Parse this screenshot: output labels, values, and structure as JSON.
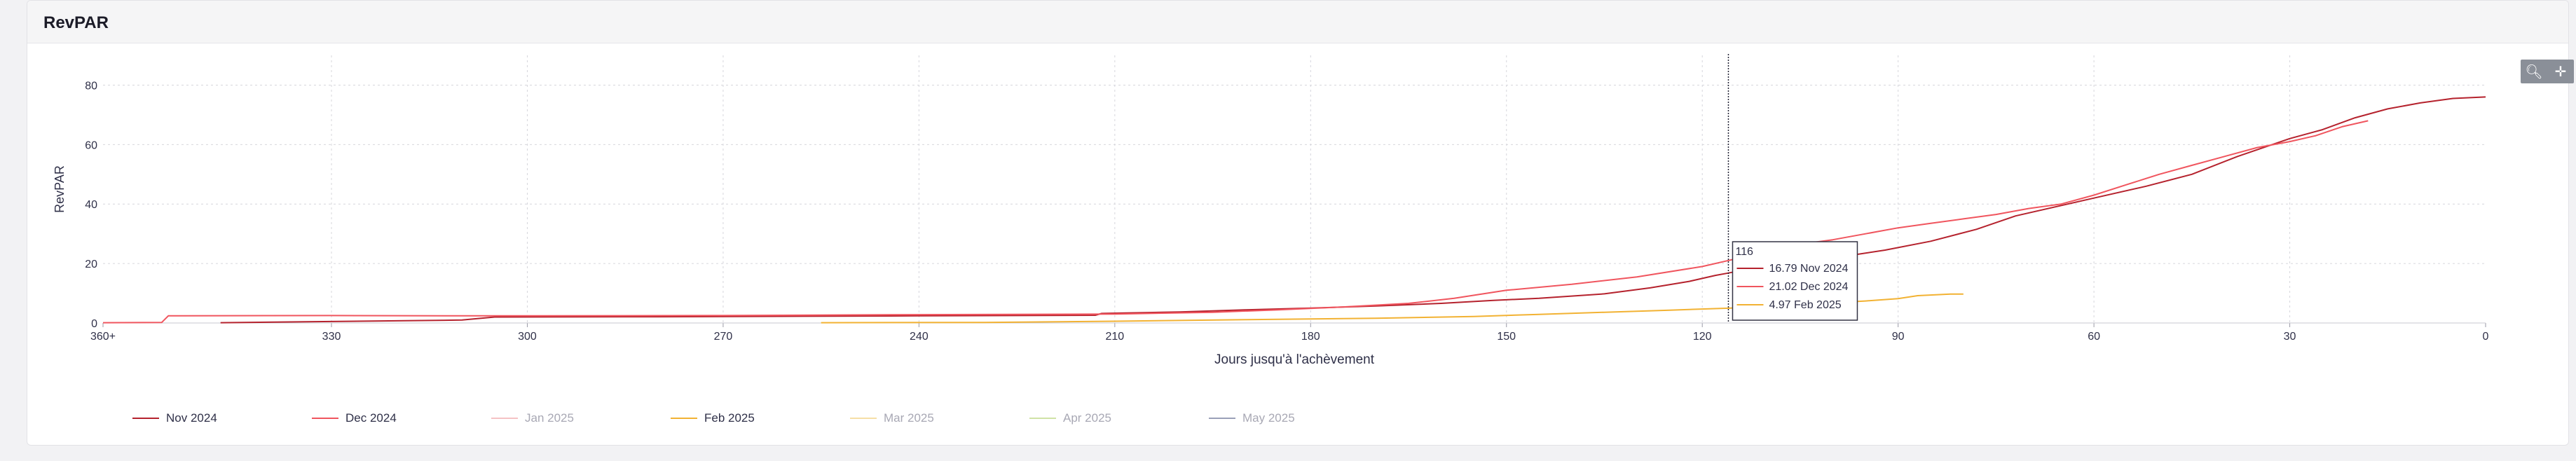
{
  "card": {
    "title": "RevPAR"
  },
  "toolbar": {
    "zoom_icon": "zoom-in-icon",
    "pan_icon": "pan-move-icon"
  },
  "chart_data": {
    "type": "line",
    "ylabel": "RevPAR",
    "xlabel": "Jours jusqu'à l'achèvement",
    "x_reversed": true,
    "xlim": [
      365,
      0
    ],
    "ylim": [
      0,
      90
    ],
    "x_ticks": [
      {
        "value": 365,
        "label": "360+"
      },
      {
        "value": 330,
        "label": "330"
      },
      {
        "value": 300,
        "label": "300"
      },
      {
        "value": 270,
        "label": "270"
      },
      {
        "value": 240,
        "label": "240"
      },
      {
        "value": 210,
        "label": "210"
      },
      {
        "value": 180,
        "label": "180"
      },
      {
        "value": 150,
        "label": "150"
      },
      {
        "value": 120,
        "label": "120"
      },
      {
        "value": 90,
        "label": "90"
      },
      {
        "value": 60,
        "label": "60"
      },
      {
        "value": 30,
        "label": "30"
      },
      {
        "value": 0,
        "label": "0"
      }
    ],
    "y_ticks": [
      0,
      20,
      40,
      60,
      80
    ],
    "grid": true,
    "legend_position": "bottom",
    "series": [
      {
        "name": "Nov 2024",
        "color": "#b5222d",
        "visible": true,
        "points": [
          [
            347,
            0.1
          ],
          [
            330,
            0.5
          ],
          [
            310,
            1.0
          ],
          [
            305,
            2.0
          ],
          [
            280,
            2.1
          ],
          [
            240,
            2.4
          ],
          [
            213,
            2.6
          ],
          [
            212,
            3.2
          ],
          [
            200,
            3.7
          ],
          [
            190,
            4.4
          ],
          [
            180,
            5.0
          ],
          [
            170,
            5.7
          ],
          [
            160,
            6.6
          ],
          [
            152,
            7.6
          ],
          [
            145,
            8.3
          ],
          [
            135,
            9.8
          ],
          [
            128,
            11.8
          ],
          [
            122,
            14.0
          ],
          [
            118,
            16.0
          ],
          [
            116,
            16.79
          ],
          [
            112,
            18.5
          ],
          [
            105,
            20.5
          ],
          [
            98,
            22.5
          ],
          [
            92,
            24.5
          ],
          [
            85,
            27.5
          ],
          [
            78,
            31.5
          ],
          [
            72,
            36.0
          ],
          [
            68,
            38.0
          ],
          [
            60,
            42.0
          ],
          [
            52,
            46.0
          ],
          [
            45,
            50.0
          ],
          [
            38,
            56.0
          ],
          [
            30,
            62.0
          ],
          [
            25,
            65.0
          ],
          [
            20,
            69.0
          ],
          [
            15,
            72.0
          ],
          [
            10,
            74.0
          ],
          [
            5,
            75.5
          ],
          [
            0,
            76.0
          ]
        ]
      },
      {
        "name": "Dec 2024",
        "color": "#f0555e",
        "visible": true,
        "points": [
          [
            365,
            0.1
          ],
          [
            356,
            0.2
          ],
          [
            355,
            2.4
          ],
          [
            330,
            2.5
          ],
          [
            310,
            2.4
          ],
          [
            300,
            2.4
          ],
          [
            270,
            2.5
          ],
          [
            240,
            2.8
          ],
          [
            210,
            3.0
          ],
          [
            195,
            3.6
          ],
          [
            185,
            4.4
          ],
          [
            175,
            5.4
          ],
          [
            165,
            6.6
          ],
          [
            158,
            8.3
          ],
          [
            150,
            11.0
          ],
          [
            140,
            13.0
          ],
          [
            130,
            15.5
          ],
          [
            120,
            19.0
          ],
          [
            116,
            21.02
          ],
          [
            110,
            24.0
          ],
          [
            105,
            26.5
          ],
          [
            100,
            28.0
          ],
          [
            95,
            30.0
          ],
          [
            90,
            32.0
          ],
          [
            85,
            33.5
          ],
          [
            80,
            35.0
          ],
          [
            75,
            36.5
          ],
          [
            70,
            38.5
          ],
          [
            65,
            40.0
          ],
          [
            60,
            43.0
          ],
          [
            55,
            46.5
          ],
          [
            50,
            50.0
          ],
          [
            45,
            53.0
          ],
          [
            40,
            56.0
          ],
          [
            35,
            59.0
          ],
          [
            30,
            61.0
          ],
          [
            26,
            63.0
          ],
          [
            22,
            66.0
          ],
          [
            18,
            68.0
          ]
        ]
      },
      {
        "name": "Jan 2025",
        "color": "#f5c2c4",
        "visible": false,
        "points": []
      },
      {
        "name": "Feb 2025",
        "color": "#f2b233",
        "visible": true,
        "points": [
          [
            255,
            0.1
          ],
          [
            230,
            0.2
          ],
          [
            210,
            0.6
          ],
          [
            190,
            1.1
          ],
          [
            170,
            1.6
          ],
          [
            155,
            2.2
          ],
          [
            145,
            2.9
          ],
          [
            135,
            3.6
          ],
          [
            125,
            4.3
          ],
          [
            116,
            4.97
          ],
          [
            108,
            5.8
          ],
          [
            100,
            6.8
          ],
          [
            95,
            7.4
          ],
          [
            90,
            8.2
          ],
          [
            87,
            9.2
          ],
          [
            82,
            9.7
          ],
          [
            80,
            9.7
          ]
        ]
      },
      {
        "name": "Mar 2025",
        "color": "#f6dfa6",
        "visible": false,
        "points": []
      },
      {
        "name": "Apr 2025",
        "color": "#cfe3a6",
        "visible": false,
        "points": []
      },
      {
        "name": "May 2025",
        "color": "#9aa0b8",
        "visible": false,
        "points": []
      }
    ],
    "tooltip": {
      "x_label": "116",
      "x_value": 116,
      "rows": [
        {
          "value": "16.79",
          "series": "Nov 2024",
          "color": "#b5222d"
        },
        {
          "value": "21.02",
          "series": "Dec 2024",
          "color": "#f0555e"
        },
        {
          "value": "4.97",
          "series": "Feb 2025",
          "color": "#f2b233"
        }
      ]
    }
  }
}
